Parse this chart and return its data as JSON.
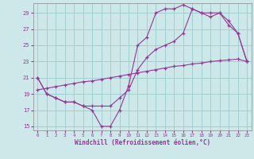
{
  "xlabel": "Windchill (Refroidissement éolien,°C)",
  "bg_color": "#cce8e8",
  "line_color": "#993399",
  "grid_color": "#99cccc",
  "xlim": [
    -0.5,
    23.5
  ],
  "ylim": [
    14.5,
    30.2
  ],
  "yticks": [
    15,
    17,
    19,
    21,
    23,
    25,
    27,
    29
  ],
  "xticks": [
    0,
    1,
    2,
    3,
    4,
    5,
    6,
    7,
    8,
    9,
    10,
    11,
    12,
    13,
    14,
    15,
    16,
    17,
    18,
    19,
    20,
    21,
    22,
    23
  ],
  "curve1_x": [
    0,
    1,
    2,
    3,
    4,
    5,
    6,
    7,
    8,
    9,
    10,
    11,
    12,
    13,
    14,
    15,
    16,
    17,
    18,
    19,
    20,
    21,
    22,
    23
  ],
  "curve1_y": [
    21.0,
    19.0,
    18.5,
    18.0,
    18.0,
    17.5,
    17.0,
    15.0,
    15.0,
    17.0,
    20.0,
    25.0,
    26.0,
    29.0,
    29.5,
    29.5,
    30.0,
    29.5,
    29.0,
    28.5,
    29.0,
    28.0,
    26.5,
    23.0
  ],
  "curve2_x": [
    0,
    1,
    2,
    3,
    4,
    5,
    6,
    7,
    8,
    9,
    10,
    11,
    12,
    13,
    14,
    15,
    16,
    17,
    18,
    19,
    20,
    21,
    22,
    23
  ],
  "curve2_y": [
    21.0,
    19.0,
    18.5,
    18.0,
    18.0,
    17.5,
    17.5,
    17.5,
    17.5,
    18.5,
    19.5,
    22.0,
    23.5,
    24.5,
    25.0,
    25.5,
    26.5,
    29.5,
    29.0,
    29.0,
    29.0,
    27.5,
    26.5,
    23.0
  ],
  "curve3_x": [
    0,
    1,
    2,
    3,
    4,
    5,
    6,
    7,
    8,
    9,
    10,
    11,
    12,
    13,
    14,
    15,
    16,
    17,
    18,
    19,
    20,
    21,
    22,
    23
  ],
  "curve3_y": [
    19.5,
    19.7,
    19.9,
    20.1,
    20.3,
    20.5,
    20.6,
    20.8,
    21.0,
    21.2,
    21.4,
    21.6,
    21.8,
    22.0,
    22.2,
    22.4,
    22.5,
    22.7,
    22.8,
    23.0,
    23.1,
    23.2,
    23.3,
    23.0
  ]
}
